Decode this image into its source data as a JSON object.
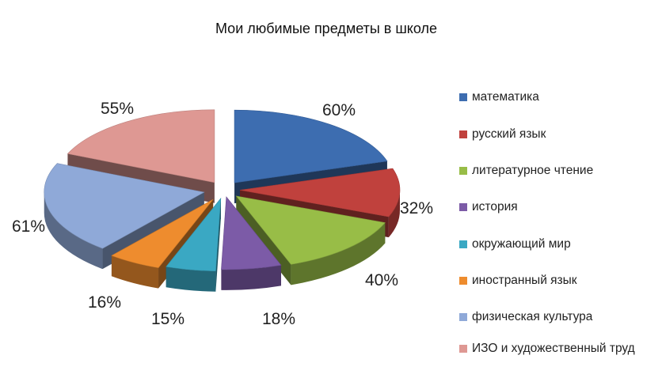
{
  "chart_data": {
    "type": "pie",
    "title": "Мои любимые предметы в школе",
    "categories": [
      "математика",
      "русский язык",
      "литературное чтение",
      "история",
      "окружающий мир",
      "иностранный язык",
      "физическая культура",
      "ИЗО и художественный труд"
    ],
    "values": [
      60,
      32,
      40,
      18,
      15,
      16,
      61,
      55
    ],
    "labels": [
      "60%",
      "32%",
      "40%",
      "18%",
      "15%",
      "16%",
      "61%",
      "55%"
    ],
    "colors": [
      "#3d6db0",
      "#c0413d",
      "#98bd47",
      "#7c5ba7",
      "#3aa8c3",
      "#ee8c2e",
      "#8fa9d8",
      "#de9893"
    ],
    "style": "exploded-3d",
    "legend_position": "right"
  }
}
